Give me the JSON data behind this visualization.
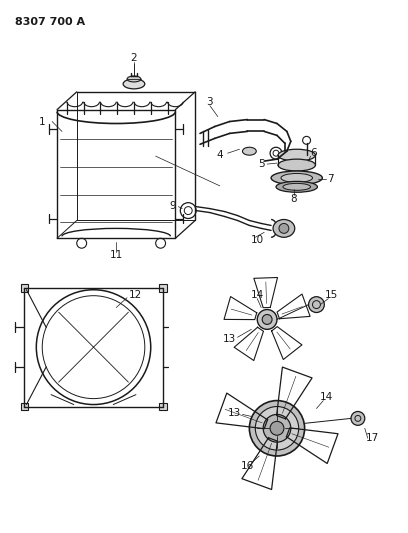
{
  "title": "8307 700 A",
  "background_color": "#ffffff",
  "line_color": "#1a1a1a",
  "fig_width": 4.08,
  "fig_height": 5.33,
  "dpi": 100
}
